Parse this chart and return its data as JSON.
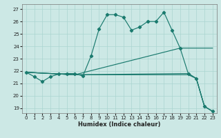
{
  "xlabel": "Humidex (Indice chaleur)",
  "xlim": [
    -0.5,
    23.5
  ],
  "ylim": [
    18.6,
    27.4
  ],
  "yticks": [
    19,
    20,
    21,
    22,
    23,
    24,
    25,
    26,
    27
  ],
  "xticks": [
    0,
    1,
    2,
    3,
    4,
    5,
    6,
    7,
    8,
    9,
    10,
    11,
    12,
    13,
    14,
    15,
    16,
    17,
    18,
    19,
    20,
    21,
    22,
    23
  ],
  "bg_color": "#cce8e5",
  "grid_color": "#aad4d0",
  "line_color": "#1a7a6e",
  "line1_x": [
    0,
    1,
    2,
    3,
    4,
    5,
    6,
    7,
    8,
    9,
    10,
    11,
    12,
    13,
    14,
    15,
    16,
    17,
    18,
    19,
    20,
    21,
    22,
    23
  ],
  "line1_y": [
    21.9,
    21.55,
    21.15,
    21.55,
    21.75,
    21.8,
    21.8,
    21.6,
    23.2,
    25.4,
    26.55,
    26.55,
    26.35,
    25.3,
    25.55,
    26.0,
    26.0,
    26.75,
    25.3,
    23.85,
    21.8,
    21.4,
    19.15,
    18.75
  ],
  "line2_x": [
    0,
    6,
    19,
    23
  ],
  "line2_y": [
    21.9,
    21.7,
    23.85,
    23.85
  ],
  "line3_x": [
    0,
    6,
    20,
    21,
    22,
    23
  ],
  "line3_y": [
    21.9,
    21.7,
    21.8,
    21.4,
    19.15,
    18.75
  ],
  "line4_x": [
    0,
    6,
    20,
    21,
    22,
    23
  ],
  "line4_y": [
    21.9,
    21.7,
    21.7,
    21.4,
    19.15,
    18.75
  ]
}
